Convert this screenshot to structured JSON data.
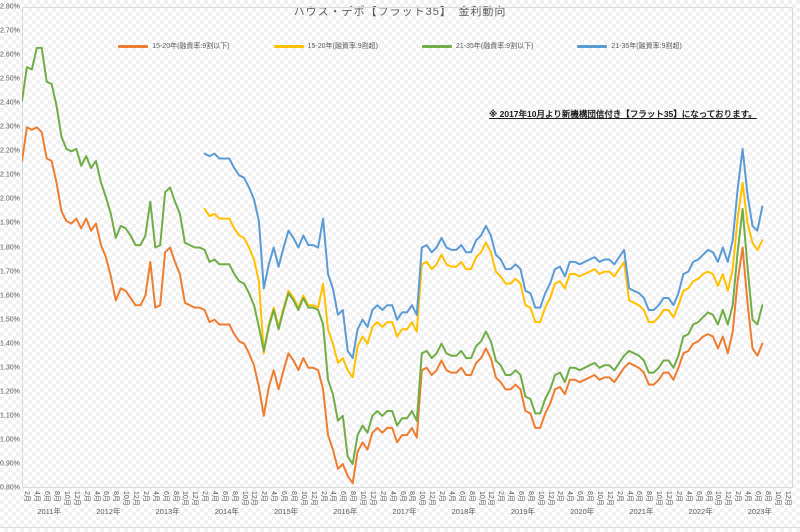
{
  "title": "ハウス・デポ【フラット35】　金利動向",
  "annotation": "※ 2017年10月より新機構団信付き【フラット35】になっております。",
  "colors": {
    "series_orange": "#ED7D31",
    "series_yellow": "#FFC000",
    "series_green": "#70AD47",
    "series_blue": "#5B9BD5",
    "axis_text": "#595959",
    "plot_border": "#d9d9d9"
  },
  "legend": [
    {
      "label": "15-20年(融資率:9割以下)",
      "color": "#ED7D31"
    },
    {
      "label": "15-20年(融資率:9割超)",
      "color": "#FFC000"
    },
    {
      "label": "21-35年(融資率:9割以下)",
      "color": "#70AD47"
    },
    {
      "label": "21-35年(融資率:9割超)",
      "color": "#5B9BD5"
    }
  ],
  "chart_data": {
    "type": "line",
    "title": "ハウス・デポ【フラット35】　金利動向",
    "xlabel": "",
    "ylabel": "",
    "ylim": [
      0.8,
      2.8
    ],
    "y_tick_step": 0.1,
    "grid": false,
    "legend_position": "top",
    "y_tick_labels": [
      "2.80%",
      "2.70%",
      "2.60%",
      "2.50%",
      "2.40%",
      "2.30%",
      "2.20%",
      "2.10%",
      "2.00%",
      "1.90%",
      "1.80%",
      "1.70%",
      "1.60%",
      "1.50%",
      "1.40%",
      "1.30%",
      "1.20%",
      "1.10%",
      "1.00%",
      "0.90%",
      "0.80%"
    ],
    "x_start": "2011-01",
    "x_end": "2023-12",
    "x_month_tick_pattern": [
      "2月",
      "4月",
      "6月",
      "8月",
      "10月",
      "12月"
    ],
    "x_year_labels": [
      "2011年",
      "2012年",
      "2013年",
      "2014年",
      "2015年",
      "2016年",
      "2017年",
      "2018年",
      "2019年",
      "2020年",
      "2021年",
      "2022年",
      "2023年"
    ],
    "series": [
      {
        "id": "15-20-under90",
        "name": "15-20年(融資率:9割以下)",
        "color": "#ED7D31",
        "values": [
          2.16,
          2.3,
          2.29,
          2.3,
          2.28,
          2.17,
          2.16,
          2.07,
          1.95,
          1.91,
          1.9,
          1.92,
          1.88,
          1.92,
          1.87,
          1.9,
          1.81,
          1.76,
          1.68,
          1.58,
          1.63,
          1.62,
          1.59,
          1.56,
          1.56,
          1.6,
          1.74,
          1.55,
          1.56,
          1.78,
          1.8,
          1.74,
          1.69,
          1.57,
          1.56,
          1.55,
          1.55,
          1.54,
          1.49,
          1.5,
          1.48,
          1.48,
          1.48,
          1.44,
          1.41,
          1.4,
          1.36,
          1.31,
          1.22,
          1.1,
          1.22,
          1.29,
          1.21,
          1.29,
          1.36,
          1.33,
          1.29,
          1.34,
          1.3,
          1.3,
          1.29,
          1.21,
          1.02,
          0.96,
          0.88,
          0.9,
          0.85,
          0.82,
          0.95,
          0.99,
          0.96,
          1.03,
          1.05,
          1.03,
          1.05,
          1.05,
          0.99,
          1.02,
          1.02,
          1.05,
          1.01,
          1.29,
          1.3,
          1.27,
          1.29,
          1.33,
          1.29,
          1.28,
          1.28,
          1.3,
          1.27,
          1.27,
          1.32,
          1.34,
          1.38,
          1.34,
          1.26,
          1.24,
          1.21,
          1.21,
          1.23,
          1.21,
          1.12,
          1.11,
          1.05,
          1.05,
          1.11,
          1.15,
          1.21,
          1.22,
          1.19,
          1.25,
          1.25,
          1.24,
          1.25,
          1.26,
          1.27,
          1.25,
          1.26,
          1.26,
          1.24,
          1.27,
          1.3,
          1.32,
          1.31,
          1.3,
          1.28,
          1.23,
          1.23,
          1.25,
          1.28,
          1.28,
          1.25,
          1.3,
          1.36,
          1.37,
          1.4,
          1.41,
          1.43,
          1.44,
          1.43,
          1.38,
          1.43,
          1.36,
          1.45,
          1.66,
          1.8,
          1.57,
          1.38,
          1.35,
          1.4,
          null,
          null,
          null,
          null,
          null
        ]
      },
      {
        "id": "15-20-over90",
        "name": "15-20年(融資率:9割超)",
        "color": "#FFC000",
        "values": [
          null,
          null,
          null,
          null,
          null,
          null,
          null,
          null,
          null,
          null,
          null,
          null,
          null,
          null,
          null,
          null,
          null,
          null,
          null,
          null,
          null,
          null,
          null,
          null,
          null,
          null,
          null,
          null,
          null,
          null,
          null,
          null,
          null,
          null,
          null,
          null,
          null,
          1.96,
          1.93,
          1.94,
          1.92,
          1.92,
          1.92,
          1.88,
          1.85,
          1.84,
          1.8,
          1.75,
          1.66,
          1.36,
          1.48,
          1.55,
          1.47,
          1.55,
          1.62,
          1.59,
          1.55,
          1.6,
          1.56,
          1.56,
          1.55,
          1.65,
          1.46,
          1.4,
          1.32,
          1.34,
          1.29,
          1.26,
          1.39,
          1.43,
          1.4,
          1.47,
          1.49,
          1.47,
          1.49,
          1.49,
          1.43,
          1.46,
          1.46,
          1.49,
          1.45,
          1.73,
          1.74,
          1.71,
          1.73,
          1.77,
          1.73,
          1.72,
          1.72,
          1.74,
          1.71,
          1.71,
          1.76,
          1.78,
          1.82,
          1.78,
          1.7,
          1.68,
          1.65,
          1.65,
          1.67,
          1.65,
          1.56,
          1.55,
          1.49,
          1.49,
          1.55,
          1.59,
          1.65,
          1.66,
          1.63,
          1.69,
          1.69,
          1.68,
          1.69,
          1.7,
          1.71,
          1.69,
          1.7,
          1.7,
          1.68,
          1.71,
          1.74,
          1.58,
          1.57,
          1.56,
          1.54,
          1.49,
          1.49,
          1.51,
          1.54,
          1.54,
          1.51,
          1.56,
          1.62,
          1.63,
          1.66,
          1.67,
          1.69,
          1.7,
          1.69,
          1.64,
          1.69,
          1.62,
          1.71,
          1.92,
          2.07,
          1.9,
          1.82,
          1.79,
          1.83,
          null,
          null,
          null,
          null,
          null
        ]
      },
      {
        "id": "21-35-under90",
        "name": "21-35年(融資率:9割以下)",
        "color": "#70AD47",
        "values": [
          2.41,
          2.55,
          2.54,
          2.63,
          2.63,
          2.49,
          2.48,
          2.39,
          2.26,
          2.21,
          2.2,
          2.21,
          2.14,
          2.18,
          2.13,
          2.16,
          2.07,
          2.01,
          1.94,
          1.84,
          1.89,
          1.88,
          1.85,
          1.81,
          1.81,
          1.85,
          1.99,
          1.8,
          1.81,
          2.03,
          2.05,
          1.99,
          1.94,
          1.82,
          1.81,
          1.8,
          1.8,
          1.79,
          1.74,
          1.75,
          1.73,
          1.73,
          1.73,
          1.69,
          1.66,
          1.65,
          1.61,
          1.56,
          1.47,
          1.37,
          1.47,
          1.54,
          1.46,
          1.54,
          1.61,
          1.58,
          1.54,
          1.59,
          1.55,
          1.55,
          1.54,
          1.48,
          1.25,
          1.19,
          1.08,
          1.1,
          0.93,
          0.9,
          1.02,
          1.06,
          1.03,
          1.1,
          1.12,
          1.1,
          1.12,
          1.12,
          1.06,
          1.09,
          1.09,
          1.12,
          1.08,
          1.36,
          1.37,
          1.34,
          1.36,
          1.4,
          1.36,
          1.35,
          1.35,
          1.37,
          1.34,
          1.34,
          1.39,
          1.41,
          1.45,
          1.41,
          1.33,
          1.31,
          1.27,
          1.27,
          1.29,
          1.27,
          1.18,
          1.17,
          1.11,
          1.11,
          1.17,
          1.21,
          1.27,
          1.28,
          1.24,
          1.3,
          1.3,
          1.29,
          1.3,
          1.31,
          1.32,
          1.3,
          1.31,
          1.31,
          1.29,
          1.32,
          1.35,
          1.37,
          1.36,
          1.35,
          1.33,
          1.28,
          1.28,
          1.3,
          1.33,
          1.33,
          1.3,
          1.35,
          1.43,
          1.44,
          1.48,
          1.49,
          1.51,
          1.53,
          1.52,
          1.48,
          1.54,
          1.48,
          1.56,
          1.78,
          1.96,
          1.72,
          1.5,
          1.48,
          1.56,
          null,
          null,
          null,
          null,
          null
        ]
      },
      {
        "id": "21-35-over90",
        "name": "21-35年(融資率:9割超)",
        "color": "#5B9BD5",
        "values": [
          null,
          null,
          null,
          null,
          null,
          null,
          null,
          null,
          null,
          null,
          null,
          null,
          null,
          null,
          null,
          null,
          null,
          null,
          null,
          null,
          null,
          null,
          null,
          null,
          null,
          null,
          null,
          null,
          null,
          null,
          null,
          null,
          null,
          null,
          null,
          null,
          null,
          2.19,
          2.18,
          2.19,
          2.17,
          2.17,
          2.17,
          2.13,
          2.1,
          2.09,
          2.05,
          2.0,
          1.91,
          1.63,
          1.73,
          1.8,
          1.72,
          1.8,
          1.87,
          1.84,
          1.8,
          1.85,
          1.81,
          1.81,
          1.8,
          1.92,
          1.69,
          1.63,
          1.52,
          1.54,
          1.37,
          1.34,
          1.46,
          1.5,
          1.47,
          1.54,
          1.56,
          1.54,
          1.56,
          1.56,
          1.5,
          1.53,
          1.53,
          1.56,
          1.52,
          1.8,
          1.81,
          1.78,
          1.8,
          1.84,
          1.8,
          1.79,
          1.79,
          1.81,
          1.78,
          1.78,
          1.83,
          1.85,
          1.89,
          1.85,
          1.77,
          1.75,
          1.71,
          1.71,
          1.73,
          1.71,
          1.62,
          1.61,
          1.55,
          1.55,
          1.61,
          1.65,
          1.71,
          1.72,
          1.68,
          1.74,
          1.74,
          1.73,
          1.74,
          1.75,
          1.76,
          1.74,
          1.75,
          1.75,
          1.73,
          1.76,
          1.79,
          1.63,
          1.62,
          1.61,
          1.59,
          1.54,
          1.54,
          1.56,
          1.59,
          1.59,
          1.56,
          1.61,
          1.69,
          1.7,
          1.74,
          1.75,
          1.77,
          1.79,
          1.78,
          1.74,
          1.8,
          1.74,
          1.83,
          2.04,
          2.21,
          2.02,
          1.89,
          1.87,
          1.97,
          null,
          null,
          null,
          null,
          null
        ]
      }
    ]
  }
}
